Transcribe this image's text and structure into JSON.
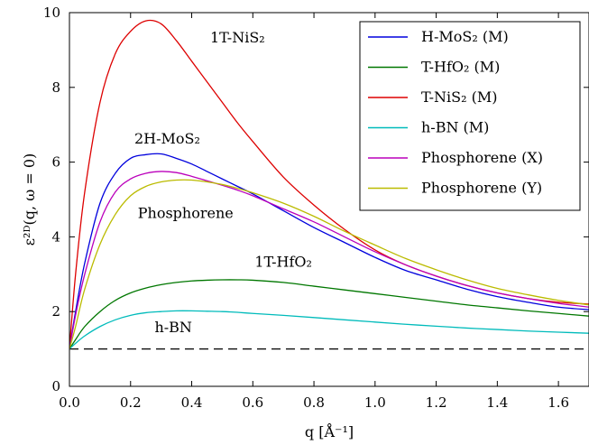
{
  "chart_data": {
    "type": "line",
    "xlabel": "q [Å⁻¹]",
    "ylabel": "ε²ᴰ(q, ω = 0)",
    "xlim": [
      0,
      1.7
    ],
    "ylim": [
      0,
      10
    ],
    "x_ticks": [
      "0.0",
      "0.2",
      "0.4",
      "0.6",
      "0.8",
      "1.0",
      "1.2",
      "1.4",
      "1.6"
    ],
    "y_ticks": [
      "0",
      "2",
      "4",
      "6",
      "8",
      "10"
    ],
    "grid": false,
    "legend_position": "top-right",
    "x": [
      0.0,
      0.02,
      0.05,
      0.1,
      0.15,
      0.2,
      0.25,
      0.3,
      0.35,
      0.4,
      0.45,
      0.5,
      0.55,
      0.6,
      0.7,
      0.8,
      0.9,
      1.0,
      1.1,
      1.2,
      1.3,
      1.4,
      1.5,
      1.6,
      1.7
    ],
    "series": [
      {
        "name": "H-MoS₂ (M)",
        "color": "#0000dd",
        "values": [
          1.0,
          2.0,
          3.3,
          4.9,
          5.7,
          6.1,
          6.2,
          6.22,
          6.1,
          5.95,
          5.75,
          5.55,
          5.35,
          5.15,
          4.7,
          4.25,
          3.85,
          3.45,
          3.1,
          2.85,
          2.6,
          2.4,
          2.25,
          2.12,
          2.05
        ]
      },
      {
        "name": "T-HfO₂ (M)",
        "color": "#007700",
        "values": [
          1.0,
          1.25,
          1.6,
          2.0,
          2.3,
          2.5,
          2.63,
          2.72,
          2.78,
          2.82,
          2.84,
          2.85,
          2.85,
          2.84,
          2.78,
          2.68,
          2.58,
          2.48,
          2.38,
          2.28,
          2.18,
          2.1,
          2.02,
          1.95,
          1.88
        ]
      },
      {
        "name": "T-NiS₂ (M)",
        "color": "#dd0000",
        "values": [
          1.0,
          3.0,
          5.2,
          7.6,
          8.9,
          9.5,
          9.78,
          9.7,
          9.25,
          8.7,
          8.15,
          7.6,
          7.05,
          6.55,
          5.6,
          4.85,
          4.2,
          3.65,
          3.25,
          2.95,
          2.7,
          2.5,
          2.35,
          2.25,
          2.2
        ]
      },
      {
        "name": "h-BN (M)",
        "color": "#00bbbb",
        "values": [
          1.0,
          1.15,
          1.35,
          1.6,
          1.78,
          1.9,
          1.97,
          2.0,
          2.02,
          2.02,
          2.01,
          2.0,
          1.98,
          1.95,
          1.9,
          1.84,
          1.78,
          1.72,
          1.66,
          1.61,
          1.56,
          1.52,
          1.48,
          1.45,
          1.42
        ]
      },
      {
        "name": "Phosphorene (X)",
        "color": "#bb00bb",
        "values": [
          1.0,
          1.9,
          3.0,
          4.4,
          5.2,
          5.55,
          5.7,
          5.75,
          5.72,
          5.62,
          5.5,
          5.38,
          5.25,
          5.1,
          4.75,
          4.4,
          4.0,
          3.6,
          3.25,
          2.95,
          2.7,
          2.5,
          2.35,
          2.22,
          2.12
        ]
      },
      {
        "name": "Phosphorene (Y)",
        "color": "#bbbb00",
        "values": [
          1.0,
          1.6,
          2.6,
          3.8,
          4.6,
          5.1,
          5.35,
          5.47,
          5.52,
          5.52,
          5.47,
          5.4,
          5.3,
          5.18,
          4.9,
          4.55,
          4.15,
          3.78,
          3.42,
          3.12,
          2.85,
          2.62,
          2.45,
          2.3,
          2.18
        ]
      }
    ],
    "reference_line": {
      "y": 1,
      "style": "dashed",
      "color": "#000000"
    },
    "annotations": [
      {
        "text": "1T-NiS₂",
        "x": 0.55,
        "y": 9.2
      },
      {
        "text": "2H-MoS₂",
        "x": 0.32,
        "y": 6.5
      },
      {
        "text": "Phosphorene",
        "x": 0.38,
        "y": 4.5
      },
      {
        "text": "1T-HfO₂",
        "x": 0.7,
        "y": 3.2
      },
      {
        "text": "h-BN",
        "x": 0.34,
        "y": 1.45
      }
    ]
  }
}
